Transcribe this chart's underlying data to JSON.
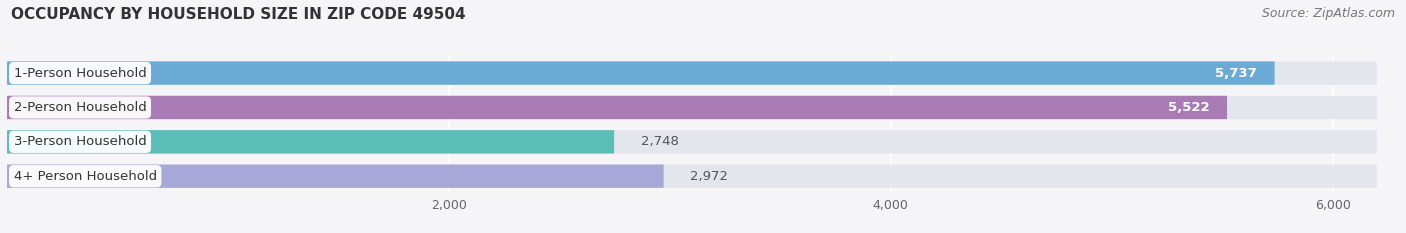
{
  "title": "OCCUPANCY BY HOUSEHOLD SIZE IN ZIP CODE 49504",
  "source": "Source: ZipAtlas.com",
  "categories": [
    "1-Person Household",
    "2-Person Household",
    "3-Person Household",
    "4+ Person Household"
  ],
  "values": [
    5737,
    5522,
    2748,
    2972
  ],
  "bar_colors": [
    "#6aaad4",
    "#a97bb5",
    "#5bbcb8",
    "#a8a8d8"
  ],
  "bar_bg_color": "#e4e6ee",
  "xlim_data": [
    0,
    6300
  ],
  "bg_bar_width": 6200,
  "xticks": [
    2000,
    4000,
    6000
  ],
  "value_labels": [
    "5,737",
    "5,522",
    "2,748",
    "2,972"
  ],
  "title_fontsize": 11,
  "label_fontsize": 9.5,
  "tick_fontsize": 9,
  "source_fontsize": 9,
  "background_color": "#f5f5f8",
  "value_color_inside": "white",
  "value_color_outside": "#555555"
}
